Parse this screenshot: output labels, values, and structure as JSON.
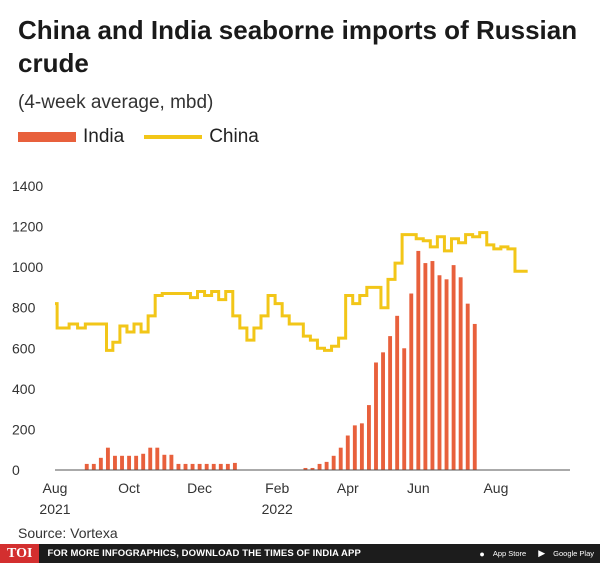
{
  "chart_data": {
    "type": "bar",
    "title": "China and India seaborne imports of Russian crude",
    "subtitle": "(4-week average, mbd)",
    "ylim": [
      0,
      1400
    ],
    "yticks": [
      0,
      200,
      400,
      600,
      800,
      1000,
      1200,
      1400
    ],
    "x_range": [
      0,
      73
    ],
    "x_ticks": [
      {
        "pos": 0,
        "label": "Aug",
        "sub": "2021"
      },
      {
        "pos": 10.5,
        "label": "Oct",
        "sub": ""
      },
      {
        "pos": 20.5,
        "label": "Dec",
        "sub": ""
      },
      {
        "pos": 31.5,
        "label": "Feb",
        "sub": "2022"
      },
      {
        "pos": 41.5,
        "label": "Apr",
        "sub": ""
      },
      {
        "pos": 51.5,
        "label": "Jun",
        "sub": ""
      },
      {
        "pos": 62.5,
        "label": "Aug",
        "sub": ""
      }
    ],
    "x_axis_line": true,
    "grid": false,
    "series": [
      {
        "name": "India",
        "type": "bar",
        "color": "#e8603c",
        "values": [
          0,
          0,
          0,
          0,
          30,
          30,
          60,
          110,
          70,
          70,
          70,
          70,
          80,
          110,
          110,
          75,
          75,
          30,
          30,
          30,
          30,
          30,
          30,
          30,
          30,
          35,
          0,
          0,
          0,
          0,
          0,
          0,
          0,
          0,
          0,
          10,
          10,
          30,
          40,
          70,
          110,
          170,
          220,
          230,
          320,
          530,
          580,
          660,
          760,
          600,
          870,
          1080,
          1020,
          1030,
          960,
          940,
          1010,
          950,
          820,
          720
        ]
      },
      {
        "name": "China",
        "type": "line",
        "color": "#f2c618",
        "points": [
          [
            0,
            820
          ],
          [
            0.3,
            700
          ],
          [
            2,
            720
          ],
          [
            3.2,
            700
          ],
          [
            4.3,
            720
          ],
          [
            7.3,
            590
          ],
          [
            8.2,
            630
          ],
          [
            9.2,
            710
          ],
          [
            10.2,
            680
          ],
          [
            11.2,
            720
          ],
          [
            12.2,
            680
          ],
          [
            13.2,
            760
          ],
          [
            14.2,
            860
          ],
          [
            15.2,
            870
          ],
          [
            19.2,
            850
          ],
          [
            20.2,
            880
          ],
          [
            21.2,
            860
          ],
          [
            22.2,
            880
          ],
          [
            23.2,
            840
          ],
          [
            24.2,
            880
          ],
          [
            25.2,
            760
          ],
          [
            26.2,
            700
          ],
          [
            27.2,
            640
          ],
          [
            28.2,
            700
          ],
          [
            29.2,
            760
          ],
          [
            30.2,
            860
          ],
          [
            31.2,
            820
          ],
          [
            32.2,
            760
          ],
          [
            33.2,
            720
          ],
          [
            35.2,
            660
          ],
          [
            36.2,
            640
          ],
          [
            37.2,
            600
          ],
          [
            38.2,
            590
          ],
          [
            39.2,
            610
          ],
          [
            40.2,
            650
          ],
          [
            41.2,
            860
          ],
          [
            42.2,
            820
          ],
          [
            43.2,
            860
          ],
          [
            44.2,
            900
          ],
          [
            46.2,
            800
          ],
          [
            47.2,
            940
          ],
          [
            48.2,
            1020
          ],
          [
            49.2,
            1160
          ],
          [
            51.2,
            1140
          ],
          [
            52.2,
            1130
          ],
          [
            53.2,
            1100
          ],
          [
            54.2,
            1150
          ],
          [
            55.2,
            1080
          ],
          [
            56.2,
            1140
          ],
          [
            57.2,
            1120
          ],
          [
            58.2,
            1160
          ],
          [
            59.2,
            1150
          ],
          [
            60.2,
            1170
          ],
          [
            61.2,
            1110
          ],
          [
            62.2,
            1090
          ],
          [
            63.2,
            1100
          ],
          [
            64.2,
            1090
          ],
          [
            65.2,
            980
          ],
          [
            66.2,
            980
          ]
        ]
      }
    ],
    "legend": "top-left",
    "source": "Source: Vortexa"
  },
  "footer": {
    "logo": "TOI",
    "promo": "FOR MORE INFOGRAPHICS, DOWNLOAD THE TIMES OF INDIA APP",
    "appstore": "App Store",
    "googleplay": "Google Play",
    "appstore_icon": "apple-icon",
    "googleplay_icon": "play-icon"
  }
}
